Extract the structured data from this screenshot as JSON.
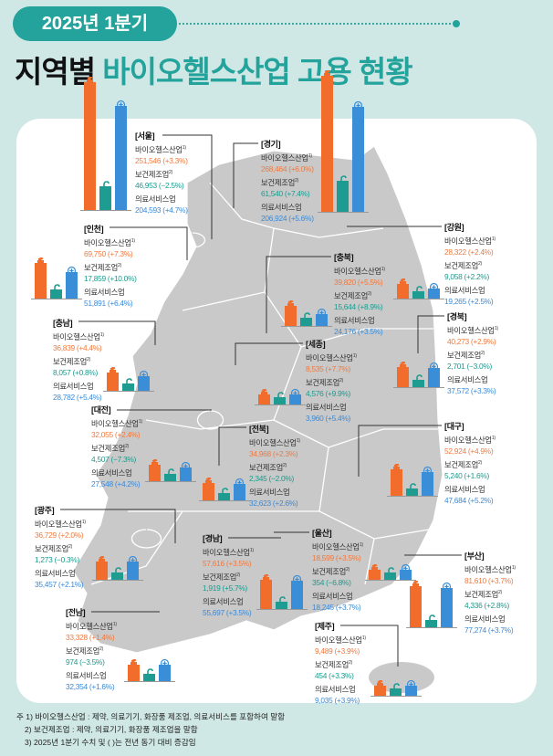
{
  "header": {
    "period": "2025년 1분기",
    "title_black": "지역별",
    "title_teal": "바이오헬스산업 고용 현황"
  },
  "categories": [
    {
      "label": "바이오헬스산업",
      "sup": "1)",
      "color": "#f26d2b",
      "icon": "pill-bottle-icon"
    },
    {
      "label": "보건제조업",
      "sup": "2)",
      "color": "#1f9c91",
      "icon": "microscope-icon"
    },
    {
      "label": "의료서비스업",
      "sup": "",
      "color": "#3a8ed8",
      "icon": "medical-cross-icon"
    }
  ],
  "regions": [
    {
      "name": "[서울]",
      "values": [
        [
          "251,546",
          "(+3.3%)"
        ],
        [
          "46,953",
          "(−2.5%)"
        ],
        [
          "204,593",
          "(+4.7%)"
        ]
      ]
    },
    {
      "name": "[경기]",
      "values": [
        [
          "268,464",
          "(+6.0%)"
        ],
        [
          "61,540",
          "(+7.4%)"
        ],
        [
          "206,924",
          "(+5.6%)"
        ]
      ]
    },
    {
      "name": "[인천]",
      "values": [
        [
          "69,750",
          "(+7.3%)"
        ],
        [
          "17,859",
          "(+10.0%)"
        ],
        [
          "51,891",
          "(+6.4%)"
        ]
      ]
    },
    {
      "name": "[강원]",
      "values": [
        [
          "28,322",
          "(+2.4%)"
        ],
        [
          "9,058",
          "(+2.2%)"
        ],
        [
          "19,265",
          "(+2.5%)"
        ]
      ]
    },
    {
      "name": "[충북]",
      "values": [
        [
          "39,820",
          "(+5.5%)"
        ],
        [
          "15,644",
          "(+8.9%)"
        ],
        [
          "24,176",
          "(+3.5%)"
        ]
      ]
    },
    {
      "name": "[충남]",
      "values": [
        [
          "36,839",
          "(+4.4%)"
        ],
        [
          "8,057",
          "(+0.8%)"
        ],
        [
          "28,782",
          "(+5.4%)"
        ]
      ]
    },
    {
      "name": "[경북]",
      "values": [
        [
          "40,273",
          "(+2.9%)"
        ],
        [
          "2,701",
          "(−3.0%)"
        ],
        [
          "37,572",
          "(+3.3%)"
        ]
      ]
    },
    {
      "name": "[세종]",
      "values": [
        [
          "8,535",
          "(+7.7%)"
        ],
        [
          "4,576",
          "(+9.9%)"
        ],
        [
          "3,960",
          "(+5.4%)"
        ]
      ]
    },
    {
      "name": "[대전]",
      "values": [
        [
          "32,055",
          "(+2.4%)"
        ],
        [
          "4,507",
          "(−7.3%)"
        ],
        [
          "27,548",
          "(+4.2%)"
        ]
      ]
    },
    {
      "name": "[전북]",
      "values": [
        [
          "34,968",
          "(+2.3%)"
        ],
        [
          "2,345",
          "(−2.0%)"
        ],
        [
          "32,623",
          "(+2.6%)"
        ]
      ]
    },
    {
      "name": "[대구]",
      "values": [
        [
          "52,924",
          "(+4.9%)"
        ],
        [
          "5,240",
          "(+1.6%)"
        ],
        [
          "47,684",
          "(+5.2%)"
        ]
      ]
    },
    {
      "name": "[광주]",
      "values": [
        [
          "36,729",
          "(+2.0%)"
        ],
        [
          "1,273",
          "(−0.3%)"
        ],
        [
          "35,457",
          "(+2.1%)"
        ]
      ]
    },
    {
      "name": "[울산]",
      "values": [
        [
          "18,599",
          "(+3.5%)"
        ],
        [
          "354",
          "(−6.8%)"
        ],
        [
          "18,245",
          "(+3.7%)"
        ]
      ]
    },
    {
      "name": "[경남]",
      "values": [
        [
          "57,616",
          "(+3.5%)"
        ],
        [
          "1,919",
          "(+5.7%)"
        ],
        [
          "55,697",
          "(+3.5%)"
        ]
      ]
    },
    {
      "name": "[부산]",
      "values": [
        [
          "81,610",
          "(+3.7%)"
        ],
        [
          "4,336",
          "(+2.8%)"
        ],
        [
          "77,274",
          "(+3.7%)"
        ]
      ]
    },
    {
      "name": "[전남]",
      "values": [
        [
          "33,328",
          "(+1.4%)"
        ],
        [
          "974",
          "(−3.5%)"
        ],
        [
          "32,354",
          "(+1.6%)"
        ]
      ]
    },
    {
      "name": "[제주]",
      "values": [
        [
          "9,489",
          "(+3.9%)"
        ],
        [
          "454",
          "(+3.3%)"
        ],
        [
          "9,035",
          "(+3.9%)"
        ]
      ]
    }
  ],
  "notes": [
    "주 1) 바이오헬스산업 : 제약, 의료기기, 화장품 제조업, 의료서비스를 포함하여 말함",
    "2) 보건제조업 : 제약, 의료기기, 화장품 제조업을 말함",
    "3) 2025년 1분기 수치 및 ( )는 전년 동기 대비 증감임"
  ]
}
